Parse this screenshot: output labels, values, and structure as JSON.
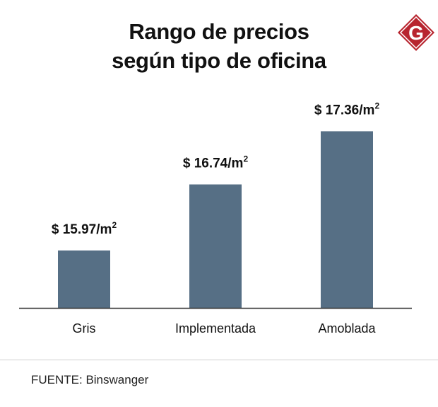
{
  "title_line1": "Rango de precios",
  "title_line2": "según tipo de oficina",
  "logo_letter": "G",
  "source": "FUENTE: Binswanger",
  "colors": {
    "bar": "#566f85",
    "logo": "#b8252f",
    "axis": "#333333"
  },
  "chart_data": {
    "type": "bar",
    "title": "Rango de precios según tipo de oficina",
    "categories": [
      "Gris",
      "Implementada",
      "Amoblada"
    ],
    "values": [
      15.97,
      16.74,
      17.36
    ],
    "value_labels": [
      "$ 15.97/m",
      "$ 16.74/m",
      "$ 17.36/m"
    ],
    "value_label_suffix": "2",
    "xlabel": "",
    "ylabel": "",
    "ylim": [
      15.3,
      17.9
    ],
    "grid": false
  }
}
